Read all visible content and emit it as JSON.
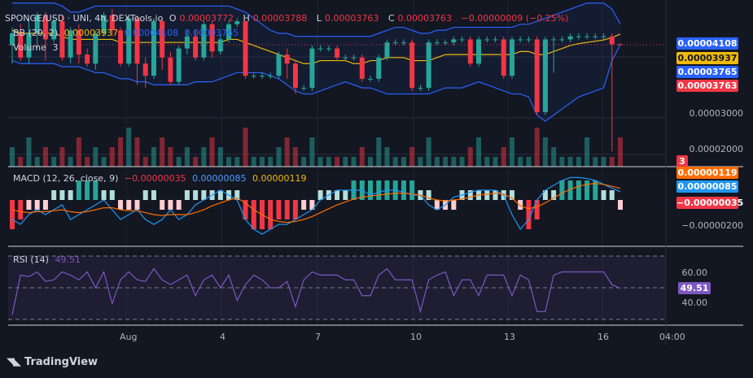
{
  "header": {
    "symbol": "SPONGE/USD · UNI, 4h, DEXTools.io",
    "open_label": "O",
    "open": "0.00003772",
    "high_label": "H",
    "high": "0.00003788",
    "low_label": "L",
    "low": "0.00003763",
    "close_label": "C",
    "close": "0.00003763",
    "change": "−0.00000009 (−0.25%)"
  },
  "bb_legend": {
    "label": "BB (20, 2)",
    "basis": "0.00003937",
    "upper": "0.00004108",
    "lower": "0.00003765"
  },
  "volume_legend": {
    "label": "Volume",
    "value": "3"
  },
  "macd_legend": {
    "label": "MACD (12, 26, close, 9)",
    "hist": "−0.00000035",
    "macd": "0.00000085",
    "signal": "0.00000119"
  },
  "rsi_legend": {
    "label": "RSI (14)",
    "value": "49.51"
  },
  "price_tags": {
    "bb_upper": "0.00004108",
    "bb_basis": "0.00003937",
    "bb_lower": "0.00003765",
    "last_price": "0.00003763",
    "volume": "3",
    "macd_signal": "0.00000119",
    "macd_line": "0.00000085",
    "macd_hist": "−0.00000035",
    "rsi": "49.51"
  },
  "axis_labels": {
    "price_3": "0.00003000",
    "price_2": "0.00002000",
    "macd_neg": "−0.00000200",
    "rsi_60": "60.00",
    "rsi_40": "40.00"
  },
  "brand": {
    "name": "TradingView"
  },
  "colors": {
    "up": "#26a69a",
    "down": "#f23645",
    "bb": "#2962ff",
    "basis": "#f0b90b",
    "macd": "#2196f3",
    "signal": "#ff6d00",
    "rsi": "#7e57c2"
  },
  "chart_data": {
    "type": "candlestick",
    "title": "SPONGE/USD · UNI, 4h, DEXTools.io",
    "x_ticks": [
      "Aug",
      "4",
      "7",
      "10",
      "13",
      "16",
      "04:00"
    ],
    "price_axis_ticks": [
      3e-05,
      2e-05
    ],
    "price_range": [
      1.75e-05,
      4.5e-05
    ],
    "candles": [
      {
        "o": 3.75,
        "c": 3.95,
        "h": 4.05,
        "l": 3.45
      },
      {
        "o": 3.95,
        "c": 3.55,
        "h": 4.1,
        "l": 3.5
      },
      {
        "o": 3.55,
        "c": 3.95,
        "h": 4.2,
        "l": 3.45
      },
      {
        "o": 3.95,
        "c": 4.25,
        "h": 4.3,
        "l": 3.7
      },
      {
        "o": 4.25,
        "c": 3.85,
        "h": 4.3,
        "l": 3.5
      },
      {
        "o": 3.85,
        "c": 4.15,
        "h": 4.2,
        "l": 3.8
      },
      {
        "o": 4.15,
        "c": 3.55,
        "h": 4.25,
        "l": 3.5
      },
      {
        "o": 3.55,
        "c": 4.0,
        "h": 4.05,
        "l": 3.45
      },
      {
        "o": 4.0,
        "c": 3.6,
        "h": 4.1,
        "l": 3.45
      },
      {
        "o": 3.6,
        "c": 3.45,
        "h": 3.7,
        "l": 3.4
      },
      {
        "o": 3.45,
        "c": 3.95,
        "h": 4.0,
        "l": 3.35
      },
      {
        "o": 3.95,
        "c": 4.25,
        "h": 4.3,
        "l": 3.9
      },
      {
        "o": 4.25,
        "c": 4.0,
        "h": 4.35,
        "l": 3.9
      },
      {
        "o": 4.0,
        "c": 3.45,
        "h": 4.05,
        "l": 3.4
      },
      {
        "o": 3.45,
        "c": 4.2,
        "h": 4.25,
        "l": 3.4
      },
      {
        "o": 4.2,
        "c": 3.45,
        "h": 4.25,
        "l": 3.1
      },
      {
        "o": 3.45,
        "c": 3.25,
        "h": 3.55,
        "l": 3.05
      },
      {
        "o": 3.25,
        "c": 4.15,
        "h": 4.2,
        "l": 3.2
      },
      {
        "o": 4.15,
        "c": 3.55,
        "h": 4.2,
        "l": 3.35
      },
      {
        "o": 3.55,
        "c": 3.15,
        "h": 3.65,
        "l": 3.1
      },
      {
        "o": 3.15,
        "c": 3.7,
        "h": 3.75,
        "l": 3.1
      },
      {
        "o": 3.7,
        "c": 3.9,
        "h": 4.0,
        "l": 3.6
      },
      {
        "o": 3.9,
        "c": 3.55,
        "h": 4.0,
        "l": 3.5
      },
      {
        "o": 3.55,
        "c": 4.1,
        "h": 4.15,
        "l": 3.5
      },
      {
        "o": 4.1,
        "c": 3.65,
        "h": 4.15,
        "l": 3.55
      },
      {
        "o": 3.65,
        "c": 3.85,
        "h": 3.95,
        "l": 3.6
      },
      {
        "o": 3.85,
        "c": 4.1,
        "h": 4.15,
        "l": 3.8
      },
      {
        "o": 4.1,
        "c": 4.15,
        "h": 4.2,
        "l": 4.05
      },
      {
        "o": 4.15,
        "c": 3.25,
        "h": 4.15,
        "l": 3.2
      },
      {
        "o": 3.25,
        "c": 3.25,
        "h": 3.3,
        "l": 3.2
      },
      {
        "o": 3.25,
        "c": 3.25,
        "h": 3.3,
        "l": 3.2
      },
      {
        "o": 3.25,
        "c": 3.25,
        "h": 3.3,
        "l": 3.2
      },
      {
        "o": 3.25,
        "c": 3.6,
        "h": 3.65,
        "l": 3.2
      },
      {
        "o": 3.6,
        "c": 3.45,
        "h": 3.7,
        "l": 3.2
      },
      {
        "o": 3.45,
        "c": 3.05,
        "h": 3.5,
        "l": 2.95
      },
      {
        "o": 3.05,
        "c": 3.05,
        "h": 3.1,
        "l": 3.0
      },
      {
        "o": 3.05,
        "c": 3.7,
        "h": 3.75,
        "l": 3.0
      },
      {
        "o": 3.7,
        "c": 3.7,
        "h": 3.75,
        "l": 3.65
      },
      {
        "o": 3.7,
        "c": 3.7,
        "h": 3.75,
        "l": 3.65
      },
      {
        "o": 3.7,
        "c": 3.55,
        "h": 3.75,
        "l": 3.5
      },
      {
        "o": 3.55,
        "c": 3.55,
        "h": 3.6,
        "l": 3.5
      },
      {
        "o": 3.55,
        "c": 3.55,
        "h": 3.6,
        "l": 3.5
      },
      {
        "o": 3.55,
        "c": 3.2,
        "h": 3.6,
        "l": 3.15
      },
      {
        "o": 3.2,
        "c": 3.2,
        "h": 3.25,
        "l": 3.15
      },
      {
        "o": 3.2,
        "c": 3.55,
        "h": 3.6,
        "l": 3.15
      },
      {
        "o": 3.55,
        "c": 3.8,
        "h": 3.85,
        "l": 3.5
      },
      {
        "o": 3.8,
        "c": 3.8,
        "h": 3.85,
        "l": 3.75
      },
      {
        "o": 3.8,
        "c": 3.8,
        "h": 3.85,
        "l": 3.75
      },
      {
        "o": 3.8,
        "c": 3.05,
        "h": 3.85,
        "l": 3.0
      },
      {
        "o": 3.05,
        "c": 3.05,
        "h": 3.1,
        "l": 3.0
      },
      {
        "o": 3.05,
        "c": 3.8,
        "h": 3.85,
        "l": 3.0
      },
      {
        "o": 3.8,
        "c": 3.8,
        "h": 3.85,
        "l": 3.75
      },
      {
        "o": 3.8,
        "c": 3.8,
        "h": 3.85,
        "l": 3.75
      },
      {
        "o": 3.8,
        "c": 3.85,
        "h": 3.9,
        "l": 3.75
      },
      {
        "o": 3.85,
        "c": 3.85,
        "h": 3.9,
        "l": 3.8
      },
      {
        "o": 3.85,
        "c": 3.45,
        "h": 3.9,
        "l": 3.4
      },
      {
        "o": 3.45,
        "c": 3.85,
        "h": 3.9,
        "l": 3.4
      },
      {
        "o": 3.85,
        "c": 3.85,
        "h": 3.9,
        "l": 3.8
      },
      {
        "o": 3.85,
        "c": 3.85,
        "h": 3.9,
        "l": 3.8
      },
      {
        "o": 3.85,
        "c": 3.25,
        "h": 3.9,
        "l": 3.2
      },
      {
        "o": 3.25,
        "c": 3.85,
        "h": 3.9,
        "l": 3.2
      },
      {
        "o": 3.85,
        "c": 3.85,
        "h": 3.9,
        "l": 3.8
      },
      {
        "o": 3.85,
        "c": 3.85,
        "h": 3.9,
        "l": 3.8
      },
      {
        "o": 3.85,
        "c": 2.65,
        "h": 3.9,
        "l": 2.6
      },
      {
        "o": 2.65,
        "c": 3.85,
        "h": 3.9,
        "l": 2.6
      },
      {
        "o": 3.85,
        "c": 3.85,
        "h": 3.9,
        "l": 3.3
      },
      {
        "o": 3.85,
        "c": 3.85,
        "h": 3.9,
        "l": 3.8
      },
      {
        "o": 3.85,
        "c": 3.9,
        "h": 3.95,
        "l": 3.8
      },
      {
        "o": 3.9,
        "c": 3.9,
        "h": 3.95,
        "l": 3.85
      },
      {
        "o": 3.9,
        "c": 3.9,
        "h": 3.95,
        "l": 3.85
      },
      {
        "o": 3.9,
        "c": 3.9,
        "h": 3.95,
        "l": 3.85
      },
      {
        "o": 3.9,
        "c": 3.9,
        "h": 3.95,
        "l": 3.85
      },
      {
        "o": 3.9,
        "c": 3.77,
        "h": 3.95,
        "l": 2.0
      },
      {
        "o": 3.77,
        "c": 3.763,
        "h": 3.788,
        "l": 3.763
      }
    ],
    "volume": [
      2,
      1,
      3,
      1,
      2,
      1,
      2,
      1,
      3,
      1,
      2,
      1,
      2,
      3,
      4,
      3,
      1,
      2,
      3,
      2,
      1,
      2,
      1,
      2,
      3,
      2,
      1,
      1,
      4,
      1,
      1,
      1,
      2,
      3,
      2,
      1,
      3,
      1,
      1,
      1,
      1,
      1,
      2,
      1,
      3,
      2,
      1,
      1,
      2,
      1,
      3,
      1,
      1,
      1,
      1,
      2,
      3,
      1,
      1,
      2,
      3,
      1,
      1,
      4,
      3,
      2,
      1,
      1,
      1,
      3,
      1,
      1,
      1,
      3
    ],
    "bb_upper": [
      4.45,
      4.45,
      4.45,
      4.45,
      4.45,
      4.45,
      4.4,
      4.3,
      4.3,
      4.35,
      4.4,
      4.4,
      4.4,
      4.4,
      4.4,
      4.4,
      4.4,
      4.4,
      4.4,
      4.4,
      4.4,
      4.4,
      4.4,
      4.4,
      4.4,
      4.4,
      4.4,
      4.35,
      4.3,
      4.2,
      4.1,
      4.0,
      3.95,
      3.95,
      3.9,
      3.9,
      3.9,
      3.9,
      3.9,
      3.9,
      3.9,
      3.9,
      3.9,
      3.9,
      3.95,
      4.0,
      4.05,
      4.05,
      4.0,
      3.95,
      3.95,
      4.0,
      4.0,
      4.05,
      4.05,
      4.05,
      4.05,
      4.05,
      4.05,
      4.05,
      4.05,
      4.1,
      4.1,
      4.15,
      4.2,
      4.25,
      4.3,
      4.35,
      4.4,
      4.45,
      4.45,
      4.45,
      4.35,
      4.108
    ],
    "bb_basis": [
      4.0,
      3.95,
      3.95,
      3.95,
      3.95,
      3.95,
      3.9,
      3.85,
      3.85,
      3.85,
      3.85,
      3.85,
      3.85,
      3.8,
      3.8,
      3.8,
      3.8,
      3.8,
      3.8,
      3.8,
      3.8,
      3.8,
      3.8,
      3.8,
      3.8,
      3.8,
      3.85,
      3.85,
      3.8,
      3.75,
      3.7,
      3.65,
      3.6,
      3.55,
      3.5,
      3.45,
      3.45,
      3.5,
      3.5,
      3.5,
      3.5,
      3.45,
      3.45,
      3.5,
      3.5,
      3.55,
      3.55,
      3.55,
      3.5,
      3.5,
      3.5,
      3.55,
      3.6,
      3.6,
      3.6,
      3.6,
      3.6,
      3.6,
      3.6,
      3.6,
      3.6,
      3.65,
      3.65,
      3.6,
      3.6,
      3.65,
      3.7,
      3.75,
      3.78,
      3.8,
      3.82,
      3.84,
      3.88,
      3.937
    ],
    "bb_lower": [
      3.5,
      3.45,
      3.45,
      3.45,
      3.45,
      3.45,
      3.4,
      3.4,
      3.4,
      3.35,
      3.3,
      3.3,
      3.25,
      3.2,
      3.2,
      3.15,
      3.15,
      3.1,
      3.1,
      3.1,
      3.1,
      3.1,
      3.15,
      3.15,
      3.15,
      3.2,
      3.25,
      3.3,
      3.3,
      3.3,
      3.3,
      3.25,
      3.2,
      3.1,
      3.0,
      2.95,
      2.95,
      3.0,
      3.05,
      3.1,
      3.15,
      3.1,
      3.05,
      3.05,
      3.0,
      2.95,
      2.95,
      2.95,
      2.95,
      2.95,
      2.95,
      3.0,
      3.05,
      3.05,
      3.05,
      3.1,
      3.15,
      3.1,
      3.05,
      3.0,
      2.95,
      2.95,
      2.9,
      2.6,
      2.5,
      2.6,
      2.7,
      2.8,
      2.9,
      2.95,
      3.0,
      3.05,
      3.5,
      3.765
    ],
    "macd_axis_ticks": [
      -2e-06
    ],
    "macd_hist": [
      -3,
      -2,
      -1,
      -1,
      -1,
      1,
      1,
      1,
      2,
      2,
      2,
      1,
      1,
      -1,
      -1,
      -1,
      1,
      1,
      -1,
      -1,
      -1,
      1,
      1,
      1,
      1,
      1,
      1,
      1,
      -2,
      -3,
      -3,
      -3,
      -2,
      -2,
      -2,
      -1,
      -1,
      1,
      1,
      1,
      1,
      2,
      2,
      2,
      2,
      2,
      2,
      2,
      2,
      1,
      1,
      -1,
      -1,
      -1,
      1,
      1,
      1,
      1,
      1,
      1,
      1,
      -1,
      -3,
      -2,
      1,
      1,
      2,
      2,
      2,
      2,
      2,
      1,
      1,
      -1
    ],
    "macd_line": [
      -2,
      -2.5,
      -1.5,
      -1,
      -1.5,
      -1,
      -0.5,
      -2,
      -1.5,
      -1,
      -0.5,
      0,
      -1,
      -2,
      -1.5,
      -1,
      -2,
      -2.5,
      -2,
      -1,
      -2,
      -1.5,
      -0.5,
      0,
      0.5,
      1,
      0.5,
      0,
      -2,
      -3,
      -3.5,
      -3,
      -2.5,
      -2.5,
      -2,
      -1.5,
      -1,
      0,
      0.5,
      1,
      1,
      1,
      1,
      0.5,
      0.8,
      1,
      1,
      0.8,
      0.5,
      0.5,
      -0.5,
      -1,
      -0.5,
      0.3,
      0.5,
      0.8,
      1,
      1,
      1,
      0.5,
      -1.5,
      -3,
      -2,
      0,
      1,
      1.5,
      2,
      2.3,
      2.3,
      2.2,
      2.0,
      1.6,
      1.2,
      0.85
    ],
    "macd_signal": [
      -1,
      -1.2,
      -1.3,
      -1.2,
      -1.2,
      -1.1,
      -1,
      -1.2,
      -1.3,
      -1.2,
      -1,
      -0.8,
      -0.8,
      -1,
      -1.1,
      -1.1,
      -1.3,
      -1.5,
      -1.6,
      -1.5,
      -1.5,
      -1.5,
      -1.3,
      -1,
      -0.6,
      -0.3,
      0,
      0.2,
      -0.3,
      -1,
      -1.5,
      -2,
      -2.2,
      -2.3,
      -2.2,
      -2,
      -1.7,
      -1.3,
      -0.9,
      -0.5,
      -0.2,
      0.1,
      0.3,
      0.4,
      0.5,
      0.6,
      0.7,
      0.7,
      0.6,
      0.5,
      0.2,
      0,
      -0.1,
      0,
      0.1,
      0.3,
      0.5,
      0.6,
      0.7,
      0.6,
      0.2,
      -0.6,
      -0.9,
      -0.7,
      -0.3,
      0.2,
      0.7,
      1.1,
      1.4,
      1.6,
      1.7,
      1.6,
      1.4,
      1.19
    ],
    "rsi_axis_ticks": [
      60,
      40
    ],
    "rsi_bands": [
      70,
      50,
      30
    ],
    "rsi": [
      33,
      58,
      57,
      60,
      54,
      55,
      60,
      58,
      55,
      60,
      50,
      60,
      40,
      55,
      60,
      55,
      54,
      62,
      55,
      52,
      55,
      58,
      45,
      55,
      58,
      50,
      58,
      42,
      52,
      58,
      55,
      50,
      50,
      54,
      38,
      55,
      60,
      58,
      58,
      58,
      55,
      55,
      45,
      45,
      58,
      62,
      55,
      55,
      55,
      35,
      55,
      58,
      60,
      45,
      55,
      55,
      45,
      58,
      58,
      58,
      45,
      58,
      55,
      35,
      35,
      58,
      60,
      60,
      60,
      60,
      60,
      60,
      52,
      49.51
    ]
  }
}
